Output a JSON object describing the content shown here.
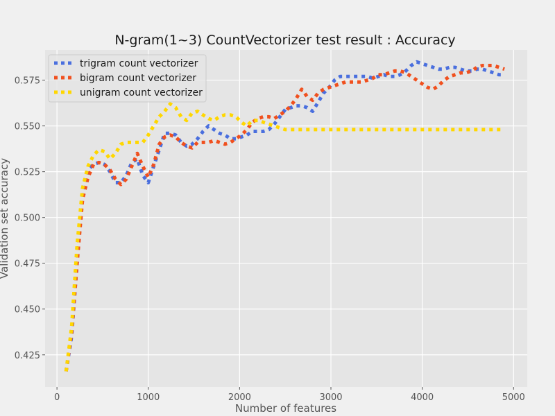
{
  "chart_data": {
    "type": "line",
    "title": "N-gram(1~3) CountVectorizer test result : Accuracy",
    "xlabel": "Number of features",
    "ylabel": "Validation set accuracy",
    "xlim": [
      -130,
      5150
    ],
    "ylim": [
      0.4075,
      0.5915
    ],
    "xticks": [
      0,
      1000,
      2000,
      3000,
      4000,
      5000
    ],
    "yticks": [
      0.425,
      0.45,
      0.475,
      0.5,
      0.525,
      0.55,
      0.575
    ],
    "ytick_labels": [
      "0.425",
      "0.450",
      "0.475",
      "0.500",
      "0.525",
      "0.550",
      "0.575"
    ],
    "grid": true,
    "legend_position": "upper-left",
    "line_style": "dotted",
    "x": [
      100,
      160,
      220,
      280,
      340,
      400,
      460,
      520,
      580,
      640,
      700,
      760,
      820,
      880,
      940,
      1000,
      1060,
      1120,
      1180,
      1240,
      1300,
      1360,
      1420,
      1480,
      1540,
      1600,
      1660,
      1720,
      1780,
      1840,
      1900,
      1960,
      2020,
      2080,
      2140,
      2200,
      2260,
      2320,
      2380,
      2440,
      2500,
      2560,
      2620,
      2680,
      2740,
      2800,
      2860,
      2920,
      2980,
      3040,
      3100,
      3160,
      3220,
      3280,
      3340,
      3400,
      3460,
      3520,
      3580,
      3640,
      3700,
      3760,
      3820,
      3880,
      3940,
      4000,
      4060,
      4120,
      4180,
      4240,
      4300,
      4360,
      4420,
      4480,
      4540,
      4600,
      4660,
      4720,
      4780,
      4840,
      4900
    ],
    "series": [
      {
        "name": "trigram count vectorizer",
        "color": "#4A6FDE",
        "values": [
          0.416,
          0.435,
          0.475,
          0.515,
          0.526,
          0.529,
          0.53,
          0.529,
          0.525,
          0.519,
          0.519,
          0.523,
          0.53,
          0.532,
          0.523,
          0.519,
          0.528,
          0.537,
          0.546,
          0.546,
          0.545,
          0.541,
          0.539,
          0.54,
          0.543,
          0.547,
          0.55,
          0.548,
          0.546,
          0.545,
          0.543,
          0.543,
          0.544,
          0.545,
          0.547,
          0.547,
          0.547,
          0.548,
          0.551,
          0.555,
          0.559,
          0.56,
          0.561,
          0.561,
          0.56,
          0.558,
          0.563,
          0.568,
          0.571,
          0.575,
          0.577,
          0.577,
          0.577,
          0.577,
          0.577,
          0.577,
          0.576,
          0.577,
          0.578,
          0.577,
          0.577,
          0.578,
          0.58,
          0.583,
          0.585,
          0.584,
          0.583,
          0.582,
          0.581,
          0.581,
          0.582,
          0.582,
          0.581,
          0.58,
          0.58,
          0.581,
          0.581,
          0.58,
          0.579,
          0.578,
          0.578
        ]
      },
      {
        "name": "bigram count vectorizer",
        "color": "#F0501E",
        "values": [
          0.416,
          0.437,
          0.475,
          0.51,
          0.522,
          0.529,
          0.53,
          0.529,
          0.526,
          0.521,
          0.518,
          0.521,
          0.528,
          0.535,
          0.528,
          0.522,
          0.529,
          0.54,
          0.544,
          0.545,
          0.544,
          0.541,
          0.539,
          0.538,
          0.541,
          0.541,
          0.541,
          0.542,
          0.541,
          0.54,
          0.541,
          0.543,
          0.545,
          0.548,
          0.552,
          0.554,
          0.555,
          0.555,
          0.554,
          0.556,
          0.558,
          0.561,
          0.565,
          0.57,
          0.566,
          0.564,
          0.568,
          0.57,
          0.571,
          0.572,
          0.573,
          0.574,
          0.574,
          0.574,
          0.574,
          0.575,
          0.576,
          0.578,
          0.578,
          0.579,
          0.58,
          0.58,
          0.579,
          0.577,
          0.575,
          0.573,
          0.571,
          0.57,
          0.572,
          0.575,
          0.577,
          0.578,
          0.579,
          0.579,
          0.58,
          0.582,
          0.583,
          0.583,
          0.583,
          0.582,
          0.581
        ]
      },
      {
        "name": "unigram count vectorizer",
        "color": "#FFD700",
        "values": [
          0.416,
          0.44,
          0.485,
          0.516,
          0.528,
          0.534,
          0.537,
          0.536,
          0.532,
          0.535,
          0.54,
          0.541,
          0.541,
          0.541,
          0.541,
          0.545,
          0.55,
          0.555,
          0.558,
          0.562,
          0.56,
          0.555,
          0.553,
          0.557,
          0.558,
          0.556,
          0.554,
          0.553,
          0.555,
          0.556,
          0.556,
          0.555,
          0.552,
          0.55,
          0.553,
          0.553,
          0.552,
          0.551,
          0.55,
          0.549,
          0.548,
          0.548,
          0.548,
          0.548,
          0.548,
          0.548,
          0.548,
          0.548,
          0.548,
          0.548,
          0.548,
          0.548,
          0.548,
          0.548,
          0.548,
          0.548,
          0.548,
          0.548,
          0.548,
          0.548,
          0.548,
          0.548,
          0.548,
          0.548,
          0.548,
          0.548,
          0.548,
          0.548,
          0.548,
          0.548,
          0.548,
          0.548,
          0.548,
          0.548,
          0.548,
          0.548,
          0.548,
          0.548,
          0.548,
          0.548,
          0.548
        ]
      }
    ]
  }
}
